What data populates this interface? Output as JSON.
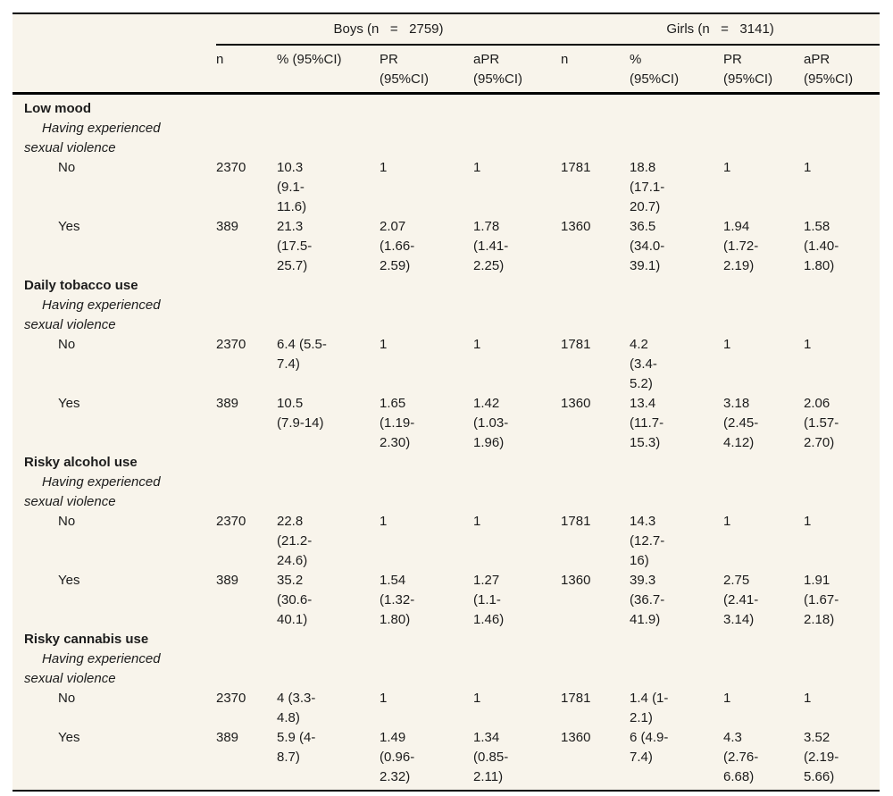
{
  "colors": {
    "page_bg": "#ffffff",
    "table_bg": "#f8f4eb",
    "rule": "#000000",
    "text": "#1c1c1c"
  },
  "table": {
    "groups": [
      {
        "label": "Boys (n   =   2759)"
      },
      {
        "label": "Girls (n   =   3141)"
      }
    ],
    "columns": [
      "n",
      "% (95%CI)",
      "PR\n(95%CI)",
      "aPR\n(95%CI)",
      "n",
      "%\n(95%CI)",
      "PR\n(95%CI)",
      "aPR\n(95%CI)"
    ],
    "sections": [
      {
        "title": "Low mood",
        "subtitle": "Having experienced\nsexual violence",
        "rows": [
          {
            "label": "No",
            "cells": [
              "2370",
              "10.3\n(9.1-\n11.6)",
              "1",
              "1",
              "1781",
              "18.8\n(17.1-\n20.7)",
              "1",
              "1"
            ]
          },
          {
            "label": "Yes",
            "cells": [
              "389",
              "21.3\n(17.5-\n25.7)",
              "2.07\n(1.66-\n2.59)",
              "1.78\n(1.41-\n2.25)",
              "1360",
              "36.5\n(34.0-\n39.1)",
              "1.94\n(1.72-\n2.19)",
              "1.58\n(1.40-\n1.80)"
            ]
          }
        ]
      },
      {
        "title": "Daily tobacco use",
        "subtitle": "Having experienced\nsexual violence",
        "rows": [
          {
            "label": "No",
            "cells": [
              "2370",
              "6.4 (5.5-\n7.4)",
              "1",
              "1",
              "1781",
              "4.2\n(3.4-\n5.2)",
              "1",
              "1"
            ]
          },
          {
            "label": "Yes",
            "cells": [
              "389",
              "10.5\n(7.9-14)",
              "1.65\n(1.19-\n2.30)",
              "1.42\n(1.03-\n1.96)",
              "1360",
              "13.4\n(11.7-\n15.3)",
              "3.18\n(2.45-\n4.12)",
              "2.06\n(1.57-\n2.70)"
            ]
          }
        ]
      },
      {
        "title": "Risky alcohol use",
        "subtitle": "Having experienced\nsexual violence",
        "rows": [
          {
            "label": "No",
            "cells": [
              "2370",
              "22.8\n(21.2-\n24.6)",
              "1",
              "1",
              "1781",
              "14.3\n(12.7-\n16)",
              "1",
              "1"
            ]
          },
          {
            "label": "Yes",
            "cells": [
              "389",
              "35.2\n(30.6-\n40.1)",
              "1.54\n(1.32-\n1.80)",
              "1.27\n(1.1-\n1.46)",
              "1360",
              "39.3\n(36.7-\n41.9)",
              "2.75\n(2.41-\n3.14)",
              "1.91\n(1.67-\n2.18)"
            ]
          }
        ]
      },
      {
        "title": "Risky cannabis use",
        "subtitle": "Having experienced\nsexual violence",
        "rows": [
          {
            "label": "No",
            "cells": [
              "2370",
              "4 (3.3-\n4.8)",
              "1",
              "1",
              "1781",
              "1.4 (1-\n2.1)",
              "1",
              "1"
            ]
          },
          {
            "label": "Yes",
            "cells": [
              "389",
              "5.9 (4-\n8.7)",
              "1.49\n(0.96-\n2.32)",
              "1.34\n(0.85-\n2.11)",
              "1360",
              "6 (4.9-\n7.4)",
              "4.3\n(2.76-\n6.68)",
              "3.52\n(2.19-\n5.66)"
            ]
          }
        ]
      }
    ]
  }
}
